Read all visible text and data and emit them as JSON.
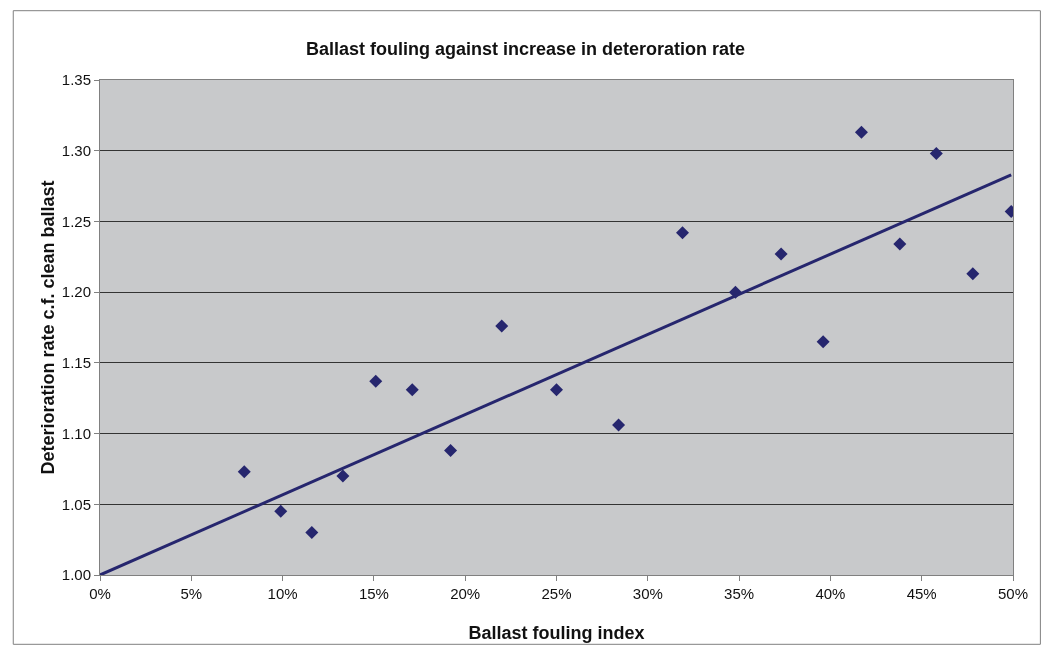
{
  "chart_data": {
    "type": "scatter",
    "title": "Ballast fouling against increase in deteroration rate",
    "xlabel": "Ballast fouling index",
    "ylabel": "Deterioration rate c.f. clean ballast",
    "series": [
      {
        "color": "#26266e",
        "marker": "diamond",
        "x": [
          7.9,
          9.9,
          11.6,
          13.3,
          15.1,
          17.1,
          19.2,
          22.0,
          25.0,
          28.4,
          31.9,
          34.8,
          37.3,
          39.6,
          41.7,
          43.8,
          45.8,
          47.8,
          49.9
        ],
        "values": [
          1.073,
          1.045,
          1.03,
          1.07,
          1.137,
          1.131,
          1.088,
          1.176,
          1.131,
          1.106,
          1.242,
          1.2,
          1.227,
          1.165,
          1.313,
          1.234,
          1.298,
          1.213,
          1.257
        ]
      },
      {
        "type": "line",
        "color": "#26266e",
        "marker": "none",
        "line_style": "solid",
        "x": [
          0,
          49.9
        ],
        "values": [
          1.0,
          1.283
        ]
      }
    ],
    "xlim": [
      0,
      50
    ],
    "ylim": [
      1.0,
      1.35
    ],
    "xticks": [
      {
        "value": 0,
        "label": "0%"
      },
      {
        "value": 5,
        "label": "5%"
      },
      {
        "value": 10,
        "label": "10%"
      },
      {
        "value": 15,
        "label": "15%"
      },
      {
        "value": 20,
        "label": "20%"
      },
      {
        "value": 25,
        "label": "25%"
      },
      {
        "value": 30,
        "label": "30%"
      },
      {
        "value": 35,
        "label": "35%"
      },
      {
        "value": 40,
        "label": "40%"
      },
      {
        "value": 45,
        "label": "45%"
      },
      {
        "value": 50,
        "label": "50%"
      }
    ],
    "yticks": [
      {
        "value": 1.0,
        "label": "1.00"
      },
      {
        "value": 1.05,
        "label": "1.05"
      },
      {
        "value": 1.1,
        "label": "1.10"
      },
      {
        "value": 1.15,
        "label": "1.15"
      },
      {
        "value": 1.2,
        "label": "1.20"
      },
      {
        "value": 1.25,
        "label": "1.25"
      },
      {
        "value": 1.3,
        "label": "1.30"
      },
      {
        "value": 1.35,
        "label": "1.35"
      }
    ],
    "grid": "y"
  }
}
